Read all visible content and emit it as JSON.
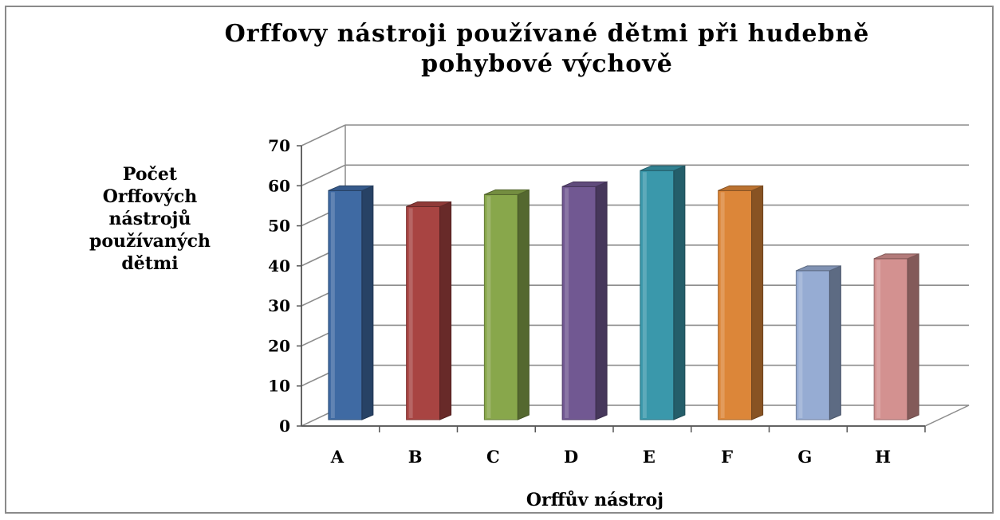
{
  "chart_data": {
    "type": "bar",
    "style": "3d-column",
    "title_lines": [
      "Orffovy nástroji používané dětmi při hudebně",
      "pohybové výchově"
    ],
    "ylabel_lines": [
      "Počet",
      "Orffových",
      "nástrojů",
      "používaných",
      "dětmi"
    ],
    "xlabel": "Orffův nástroj",
    "categories": [
      "A",
      "B",
      "C",
      "D",
      "E",
      "F",
      "G",
      "H"
    ],
    "values": [
      58,
      54,
      57,
      59,
      63,
      58,
      38,
      41
    ],
    "ylim": [
      0,
      70
    ],
    "yticks": [
      "0",
      "10",
      "20",
      "30",
      "40",
      "50",
      "60",
      "70"
    ],
    "grid": true,
    "legend": "none",
    "colors": {
      "A": "#3f6aa3",
      "B": "#a84442",
      "C": "#88a74b",
      "D": "#715892",
      "E": "#3a98ab",
      "F": "#dc8639",
      "G": "#96acd3",
      "H": "#d39190"
    },
    "gridline_color": "#8c8c8c",
    "frame_color": "#8a8a8a"
  }
}
